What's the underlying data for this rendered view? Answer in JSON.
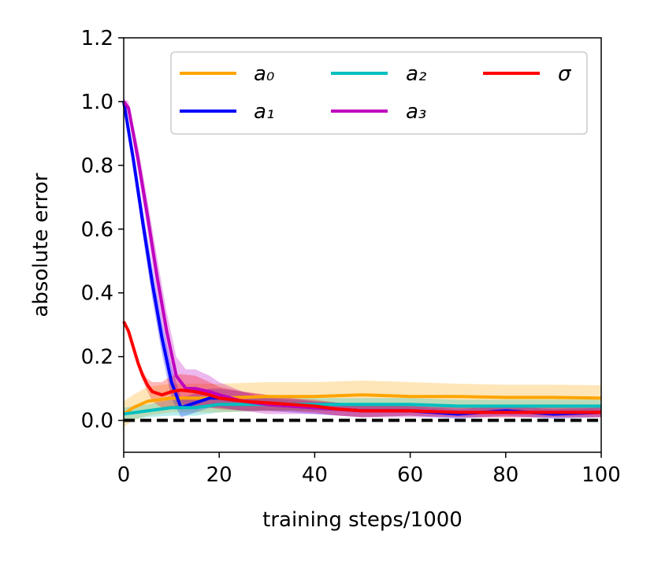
{
  "chart_data": {
    "type": "line",
    "xlabel": "training steps/1000",
    "ylabel": "absolute error",
    "xlim": [
      0,
      100
    ],
    "ylim": [
      -0.1,
      1.2
    ],
    "xticks": [
      "0",
      "20",
      "40",
      "60",
      "80",
      "100"
    ],
    "yticks": [
      "0.0",
      "0.2",
      "0.4",
      "0.6",
      "0.8",
      "1.0",
      "1.2"
    ],
    "grid": false,
    "legend_position": "top-right",
    "reference_line": {
      "y": 0.0,
      "style": "dashed",
      "color": "#000000"
    },
    "series": [
      {
        "name": "a₀",
        "color": "#FFA500",
        "x": [
          0,
          2,
          5,
          10,
          15,
          20,
          30,
          40,
          50,
          60,
          70,
          80,
          90,
          100
        ],
        "y": [
          0.02,
          0.04,
          0.06,
          0.07,
          0.07,
          0.07,
          0.075,
          0.075,
          0.08,
          0.075,
          0.075,
          0.072,
          0.072,
          0.07
        ],
        "band": [
          0.04,
          0.04,
          0.045,
          0.045,
          0.045,
          0.045,
          0.045,
          0.045,
          0.045,
          0.045,
          0.04,
          0.04,
          0.04,
          0.04
        ]
      },
      {
        "name": "a₁",
        "color": "#0000FF",
        "x": [
          0,
          2,
          4,
          6,
          8,
          10,
          12,
          14,
          16,
          18,
          20,
          25,
          30,
          40,
          50,
          60,
          70,
          80,
          90,
          100
        ],
        "y": [
          1.0,
          0.82,
          0.62,
          0.43,
          0.26,
          0.12,
          0.04,
          0.05,
          0.06,
          0.07,
          0.07,
          0.06,
          0.05,
          0.04,
          0.03,
          0.03,
          0.02,
          0.03,
          0.02,
          0.025
        ],
        "band": [
          0.01,
          0.03,
          0.04,
          0.05,
          0.05,
          0.05,
          0.03,
          0.03,
          0.03,
          0.03,
          0.03,
          0.03,
          0.02,
          0.02,
          0.02,
          0.015,
          0.015,
          0.015,
          0.015,
          0.015
        ]
      },
      {
        "name": "a₂",
        "color": "#00BFBF",
        "x": [
          0,
          5,
          10,
          15,
          20,
          30,
          40,
          50,
          60,
          70,
          80,
          90,
          100
        ],
        "y": [
          0.02,
          0.03,
          0.04,
          0.04,
          0.05,
          0.05,
          0.05,
          0.05,
          0.05,
          0.045,
          0.045,
          0.045,
          0.045
        ],
        "band": [
          0.02,
          0.02,
          0.025,
          0.025,
          0.025,
          0.02,
          0.02,
          0.02,
          0.02,
          0.02,
          0.02,
          0.02,
          0.02
        ]
      },
      {
        "name": "a₃",
        "color": "#BF00BF",
        "x": [
          0,
          1,
          3,
          5,
          7,
          9,
          11,
          13,
          15,
          18,
          20,
          25,
          30,
          40,
          50,
          60,
          70,
          80,
          90,
          100
        ],
        "y": [
          1.0,
          0.98,
          0.82,
          0.64,
          0.45,
          0.28,
          0.14,
          0.1,
          0.1,
          0.09,
          0.08,
          0.06,
          0.05,
          0.04,
          0.03,
          0.03,
          0.025,
          0.025,
          0.025,
          0.025
        ],
        "band": [
          0.01,
          0.02,
          0.04,
          0.05,
          0.06,
          0.06,
          0.06,
          0.06,
          0.06,
          0.05,
          0.04,
          0.03,
          0.03,
          0.02,
          0.02,
          0.02,
          0.015,
          0.015,
          0.015,
          0.015
        ]
      },
      {
        "name": "σ",
        "color": "#FF0000",
        "x": [
          0,
          1,
          2,
          3,
          4,
          5,
          6,
          8,
          10,
          12,
          15,
          18,
          20,
          25,
          30,
          35,
          40,
          45,
          50,
          60,
          70,
          80,
          90,
          100
        ],
        "y": [
          0.31,
          0.28,
          0.23,
          0.18,
          0.14,
          0.11,
          0.09,
          0.08,
          0.09,
          0.095,
          0.09,
          0.08,
          0.07,
          0.06,
          0.055,
          0.05,
          0.045,
          0.035,
          0.03,
          0.03,
          0.025,
          0.025,
          0.025,
          0.025
        ],
        "band": [
          0.0,
          0.0,
          0.01,
          0.01,
          0.015,
          0.02,
          0.03,
          0.04,
          0.05,
          0.05,
          0.05,
          0.04,
          0.035,
          0.03,
          0.025,
          0.02,
          0.02,
          0.02,
          0.02,
          0.015,
          0.015,
          0.015,
          0.015,
          0.015
        ]
      }
    ]
  }
}
